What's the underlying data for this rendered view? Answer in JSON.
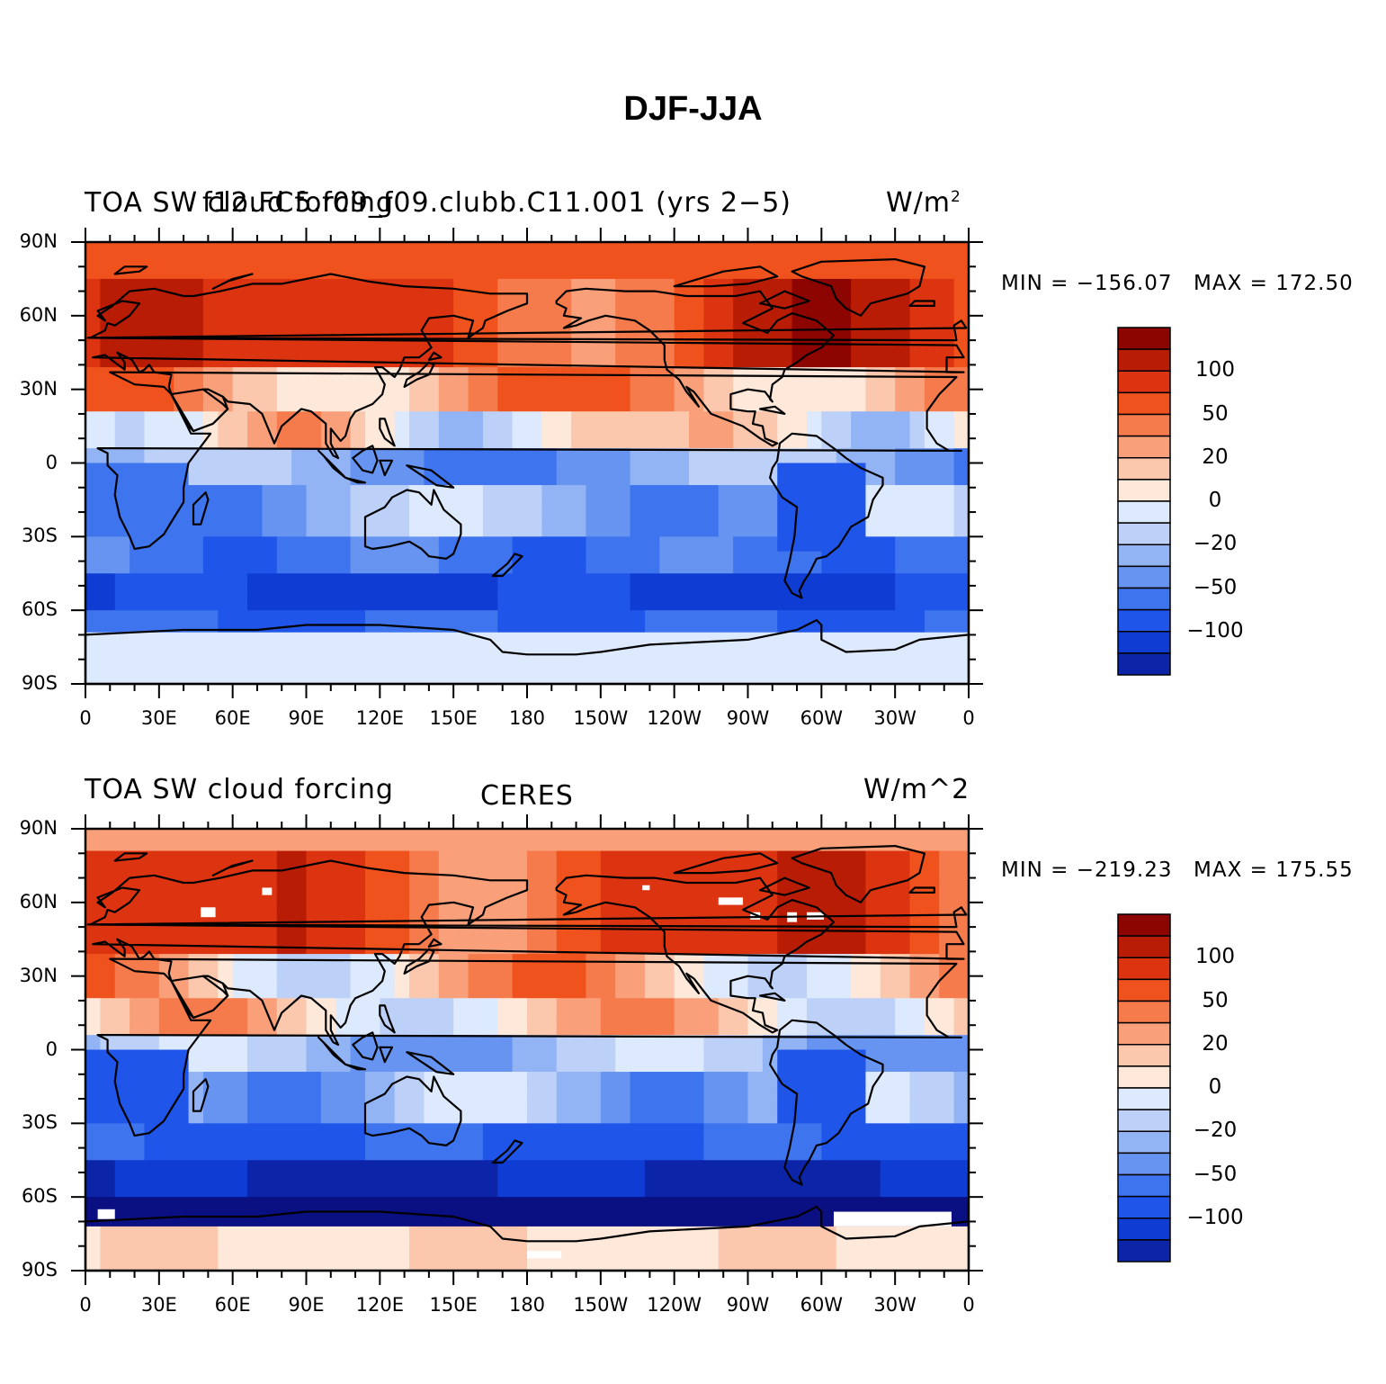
{
  "title": "DJF-JJA",
  "colors": {
    "levels": [
      "#0a0f82",
      "#0b24a8",
      "#0f3cd2",
      "#1f55e8",
      "#3e74ee",
      "#6694f0",
      "#93b4f4",
      "#bdd1f8",
      "#dde9fc",
      "#fde8da",
      "#fbc7ad",
      "#f9a07a",
      "#f67b4c",
      "#f0521e",
      "#dc3410",
      "#b91c05",
      "#8c0500"
    ],
    "land_outline": "#000000"
  },
  "colorbar_labels": [
    "100",
    "50",
    "20",
    "0",
    "−20",
    "−50",
    "−100"
  ],
  "x_ticks": [
    "0",
    "30E",
    "60E",
    "90E",
    "120E",
    "150E",
    "180",
    "150W",
    "120W",
    "90W",
    "60W",
    "30W",
    "0"
  ],
  "y_ticks": [
    "90N",
    "60N",
    "30N",
    "0",
    "30S",
    "60S",
    "90S"
  ],
  "panels": [
    {
      "left_title": "TOA SW cloud forcing",
      "center_title": "f12.FC5.f09_f09.clubb.C11.001 (yrs 2−5)",
      "units": "W/m",
      "units_sup": "2",
      "min_label": "MIN = −156.07",
      "max_label": "MAX = 172.50",
      "min": -156.07,
      "max": 172.5
    },
    {
      "left_title": "TOA SW cloud forcing",
      "center_title": "CERES",
      "units": "W/m^2",
      "units_sup": "",
      "min_label": "MIN = −219.23",
      "max_label": "MAX = 175.55",
      "min": -219.23,
      "max": 175.55
    }
  ]
}
